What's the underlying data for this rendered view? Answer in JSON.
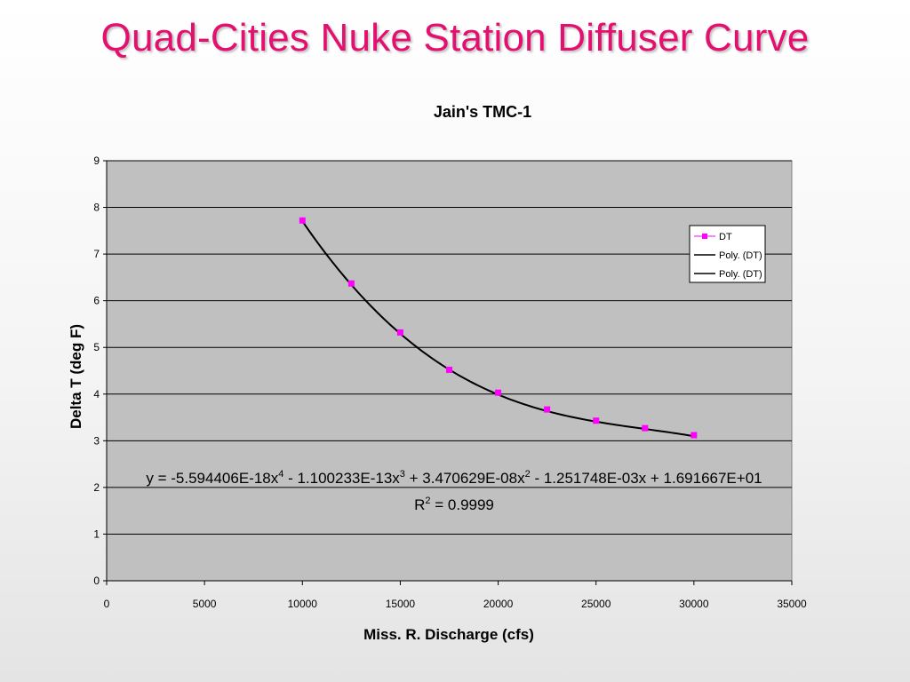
{
  "slide": {
    "title": "Quad-Cities Nuke Station Diffuser Curve",
    "title_color": "#e3106f"
  },
  "chart_data": {
    "type": "scatter",
    "title": "Jain's TMC-1",
    "xlabel": "Miss. R. Discharge (cfs)",
    "ylabel": "Delta T (deg F)",
    "xlim": [
      0,
      35000
    ],
    "ylim": [
      0,
      9
    ],
    "x_ticks": [
      0,
      5000,
      10000,
      15000,
      20000,
      25000,
      30000,
      35000
    ],
    "y_ticks": [
      0,
      1,
      2,
      3,
      4,
      5,
      6,
      7,
      8,
      9
    ],
    "grid": "horizontal",
    "plot_background": "#c0c0c0",
    "legend_position": "right",
    "series": [
      {
        "name": "DT",
        "marker": "square",
        "color": "#ff00ff",
        "x": [
          10000,
          12500,
          15000,
          17500,
          20000,
          22500,
          25000,
          27500,
          30000
        ],
        "y": [
          7.72,
          6.37,
          5.32,
          4.52,
          4.03,
          3.67,
          3.43,
          3.27,
          3.12
        ]
      }
    ],
    "trendlines": [
      {
        "name": "Poly. (DT)",
        "type": "polynomial",
        "order": 4,
        "color": "#000000"
      },
      {
        "name": "Poly. (DT)",
        "type": "polynomial",
        "order": 4,
        "color": "#000000"
      }
    ],
    "equation": {
      "parts": [
        "y = -5.594406E-18x",
        "4",
        " - 1.100233E-13x",
        "3",
        " + 3.470629E-08x",
        "2",
        " - 1.251748E-03x + 1.691667E+01"
      ],
      "r2_parts": [
        "R",
        "2",
        " = 0.9999"
      ]
    }
  }
}
